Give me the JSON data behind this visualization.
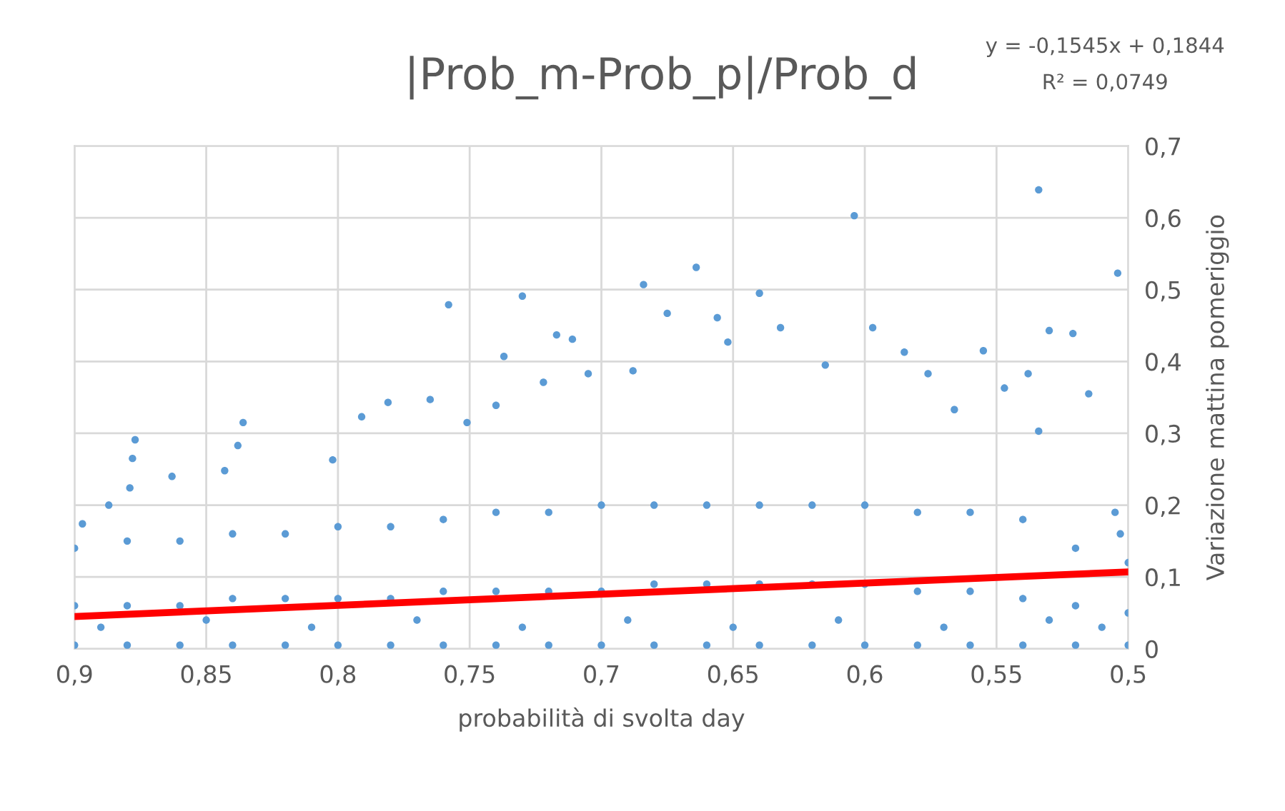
{
  "chart_data": {
    "type": "scatter",
    "title": "|Prob_m-Prob_p|/Prob_d",
    "xlabel": "probabilità di svolta day",
    "ylabel": "Variazione mattina pomeriggio",
    "annotations": [
      "y = -0,1545x + 0,1844",
      "R² = 0,0749"
    ],
    "xlim": [
      0.9,
      0.5
    ],
    "ylim": [
      0,
      0.7
    ],
    "xticks": [
      {
        "value": 0.9,
        "label": "0,9"
      },
      {
        "value": 0.85,
        "label": "0,85"
      },
      {
        "value": 0.8,
        "label": "0,8"
      },
      {
        "value": 0.75,
        "label": "0,75"
      },
      {
        "value": 0.7,
        "label": "0,7"
      },
      {
        "value": 0.65,
        "label": "0,65"
      },
      {
        "value": 0.6,
        "label": "0,6"
      },
      {
        "value": 0.55,
        "label": "0,55"
      },
      {
        "value": 0.5,
        "label": "0,5"
      }
    ],
    "yticks": [
      0,
      {
        "value": 0.1,
        "label": "0,1"
      },
      {
        "value": 0.2,
        "label": "0,2"
      },
      {
        "value": 0.3,
        "label": "0,3"
      },
      {
        "value": 0.4,
        "label": "0,4"
      },
      {
        "value": 0.5,
        "label": "0,5"
      },
      {
        "value": 0.6,
        "label": "0,6"
      },
      {
        "value": 0.7,
        "label": "0,7"
      }
    ],
    "grid": true,
    "marker": "circle",
    "series": [
      {
        "color": "#5b9bd5",
        "x": [
          0.534,
          0.604,
          0.504,
          0.664,
          0.684,
          0.64,
          0.675,
          0.656,
          0.632,
          0.597,
          0.53,
          0.521,
          0.555,
          0.652,
          0.585,
          0.538,
          0.515,
          0.547,
          0.505,
          0.503,
          0.534,
          0.576,
          0.566,
          0.615,
          0.73,
          0.758,
          0.717,
          0.711,
          0.737,
          0.705,
          0.722,
          0.74,
          0.765,
          0.781,
          0.791,
          0.836,
          0.877,
          0.838,
          0.878,
          0.863,
          0.879,
          0.887,
          0.897,
          0.843,
          0.802,
          0.751,
          0.688,
          0.9,
          0.88,
          0.86,
          0.84,
          0.82,
          0.8,
          0.78,
          0.76,
          0.74,
          0.72,
          0.7,
          0.68,
          0.66,
          0.64,
          0.62,
          0.6,
          0.58,
          0.56,
          0.54,
          0.52,
          0.5,
          0.9,
          0.88,
          0.86,
          0.84,
          0.82,
          0.8,
          0.78,
          0.76,
          0.74,
          0.72,
          0.7,
          0.68,
          0.66,
          0.64,
          0.62,
          0.6,
          0.58,
          0.56,
          0.54,
          0.52,
          0.5,
          0.9,
          0.88,
          0.86,
          0.84,
          0.82,
          0.8,
          0.78,
          0.76,
          0.74,
          0.72,
          0.7,
          0.68,
          0.66,
          0.64,
          0.62,
          0.6,
          0.58,
          0.56,
          0.54,
          0.52,
          0.5,
          0.89,
          0.85,
          0.81,
          0.77,
          0.73,
          0.69,
          0.65,
          0.61,
          0.57,
          0.53,
          0.51
        ],
        "values": [
          0.639,
          0.603,
          0.523,
          0.531,
          0.507,
          0.495,
          0.467,
          0.461,
          0.447,
          0.447,
          0.443,
          0.439,
          0.415,
          0.427,
          0.413,
          0.383,
          0.355,
          0.363,
          0.19,
          0.16,
          0.303,
          0.383,
          0.333,
          0.395,
          0.491,
          0.479,
          0.437,
          0.431,
          0.407,
          0.383,
          0.371,
          0.339,
          0.347,
          0.343,
          0.323,
          0.315,
          0.291,
          0.283,
          0.265,
          0.24,
          0.224,
          0.2,
          0.174,
          0.248,
          0.263,
          0.315,
          0.387,
          0.005,
          0.005,
          0.005,
          0.005,
          0.005,
          0.005,
          0.005,
          0.005,
          0.005,
          0.005,
          0.005,
          0.005,
          0.005,
          0.005,
          0.005,
          0.005,
          0.005,
          0.005,
          0.005,
          0.005,
          0.005,
          0.06,
          0.06,
          0.06,
          0.07,
          0.07,
          0.07,
          0.07,
          0.08,
          0.08,
          0.08,
          0.08,
          0.09,
          0.09,
          0.09,
          0.09,
          0.09,
          0.08,
          0.08,
          0.07,
          0.06,
          0.05,
          0.14,
          0.15,
          0.15,
          0.16,
          0.16,
          0.17,
          0.17,
          0.18,
          0.19,
          0.19,
          0.2,
          0.2,
          0.2,
          0.2,
          0.2,
          0.2,
          0.19,
          0.19,
          0.18,
          0.14,
          0.12,
          0.03,
          0.04,
          0.03,
          0.04,
          0.03,
          0.04,
          0.03,
          0.04,
          0.03,
          0.04,
          0.03
        ]
      },
      {
        "color": "#ff0000",
        "type": "line",
        "marker": "none",
        "x": [
          0.9,
          0.5
        ],
        "values": [
          0.045,
          0.107
        ]
      }
    ]
  }
}
